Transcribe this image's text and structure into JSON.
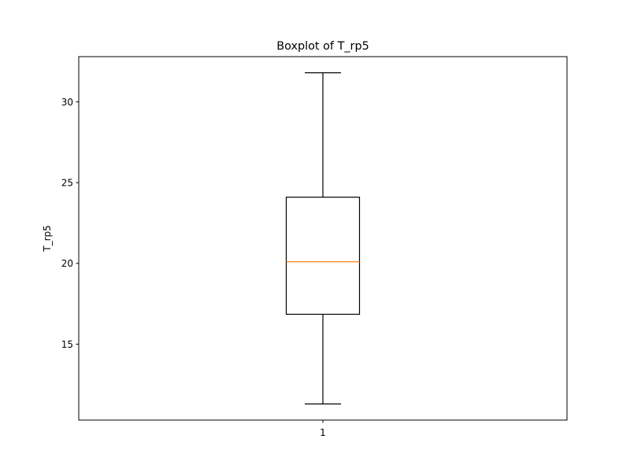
{
  "chart_data": {
    "type": "boxplot",
    "title": "Boxplot of T_rp5",
    "xlabel": "",
    "ylabel": "T_rp5",
    "categories": [
      "1"
    ],
    "boxes": [
      {
        "category": "1",
        "whisker_low": 11.3,
        "q1": 16.85,
        "median": 20.1,
        "q3": 24.1,
        "whisker_high": 31.8
      }
    ],
    "ylim": [
      10.3,
      32.8
    ],
    "yticks": [
      15,
      20,
      25,
      30
    ],
    "xlim": [
      0.5,
      1.5
    ],
    "grid": false,
    "colors": {
      "box": "#000000",
      "median": "#ff7f0e",
      "axes": "#000000",
      "background": "#ffffff"
    }
  }
}
